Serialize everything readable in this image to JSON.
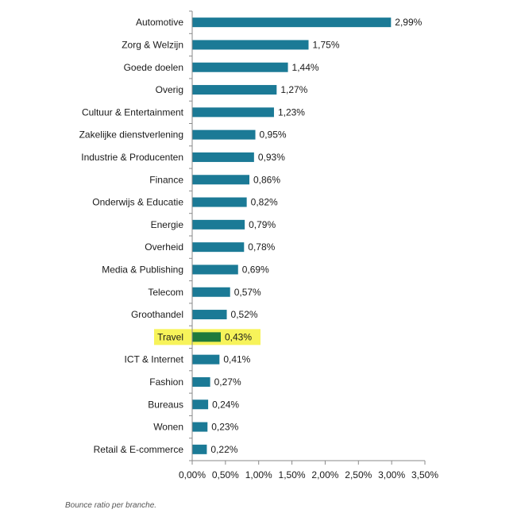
{
  "chart_data": {
    "type": "bar",
    "orientation": "horizontal",
    "categories": [
      "Automotive",
      "Zorg & Welzijn",
      "Goede doelen",
      "Overig",
      "Cultuur & Entertainment",
      "Zakelijke dienstverlening",
      "Industrie & Producenten",
      "Finance",
      "Onderwijs & Educatie",
      "Energie",
      "Overheid",
      "Media & Publishing",
      "Telecom",
      "Groothandel",
      "Travel",
      "ICT & Internet",
      "Fashion",
      "Bureaus",
      "Wonen",
      "Retail & E-commerce"
    ],
    "values": [
      2.99,
      1.75,
      1.44,
      1.27,
      1.23,
      0.95,
      0.93,
      0.86,
      0.82,
      0.79,
      0.78,
      0.69,
      0.57,
      0.52,
      0.43,
      0.41,
      0.27,
      0.24,
      0.23,
      0.22
    ],
    "value_labels": [
      "2,99%",
      "1,75%",
      "1,44%",
      "1,27%",
      "1,23%",
      "0,95%",
      "0,93%",
      "0,86%",
      "0,82%",
      "0,79%",
      "0,78%",
      "0,69%",
      "0,57%",
      "0,52%",
      "0,43%",
      "0,41%",
      "0,27%",
      "0,24%",
      "0,23%",
      "0,22%"
    ],
    "xlim": [
      0,
      3.5
    ],
    "xticks": [
      0,
      0.5,
      1,
      1.5,
      2,
      2.5,
      3,
      3.5
    ],
    "xtick_labels": [
      "0,00%",
      "0,50%",
      "1,00%",
      "1,50%",
      "2,00%",
      "2,50%",
      "3,00%",
      "3,50%"
    ],
    "highlight_category": "Travel",
    "grid": false
  },
  "colors": {
    "bar": "#1b7a96",
    "highlight_bar": "#1f7a3c",
    "highlight_background": "#f7f35a",
    "axis": "#8a8a8a"
  },
  "caption": "Bounce ratio per branche."
}
